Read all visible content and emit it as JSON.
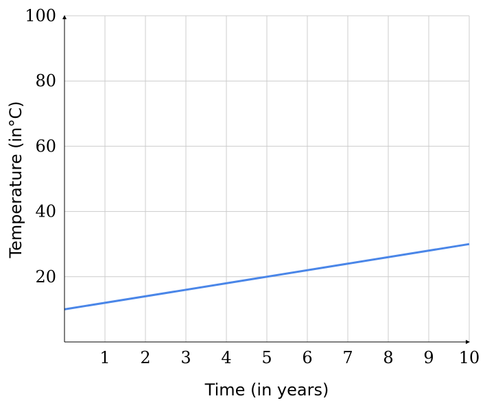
{
  "chart_data": {
    "type": "line",
    "xlabel": "Time (in years)",
    "ylabel": "Temperature (in°C)",
    "xlim": [
      0,
      10
    ],
    "ylim": [
      0,
      100
    ],
    "xticks": [
      "1",
      "2",
      "3",
      "4",
      "5",
      "6",
      "7",
      "8",
      "9",
      "10"
    ],
    "yticks": [
      "20",
      "40",
      "60",
      "80",
      "100"
    ],
    "grid": true,
    "legend": "none",
    "series": [
      {
        "color": "#4a86e8",
        "x": [
          0,
          10
        ],
        "y": [
          10,
          30
        ]
      }
    ]
  }
}
